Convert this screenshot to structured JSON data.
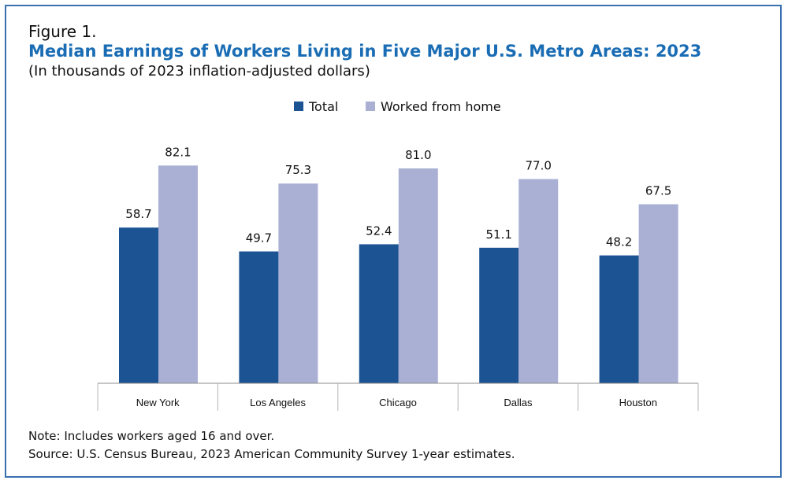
{
  "figure_label": "Figure 1.",
  "colors": {
    "total": "#1b5393",
    "wfh": "#a9b0d3",
    "title": "#1a6db4",
    "border": "#3a6fb0"
  },
  "chart_data": {
    "type": "bar",
    "title": "Median Earnings of Workers Living in Five Major U.S. Metro Areas: 2023",
    "subtitle": "(In thousands of 2023 inflation-adjusted dollars)",
    "categories": [
      "New York",
      "Los Angeles",
      "Chicago",
      "Dallas",
      "Houston"
    ],
    "series": [
      {
        "name": "Total",
        "values": [
          58.7,
          49.7,
          52.4,
          51.1,
          48.2
        ]
      },
      {
        "name": "Worked from home",
        "values": [
          82.1,
          75.3,
          81.0,
          77.0,
          67.5
        ]
      }
    ],
    "value_labels": [
      [
        "58.7",
        "49.7",
        "52.4",
        "51.1",
        "48.2"
      ],
      [
        "82.1",
        "75.3",
        "81.0",
        "77.0",
        "67.5"
      ]
    ],
    "ylim": [
      0,
      100
    ],
    "grid": false,
    "legend_position": "top-center"
  },
  "notes": {
    "note": "Note: Includes workers aged 16 and over.",
    "source": "Source: U.S. Census Bureau, 2023 American Community Survey 1-year estimates."
  }
}
